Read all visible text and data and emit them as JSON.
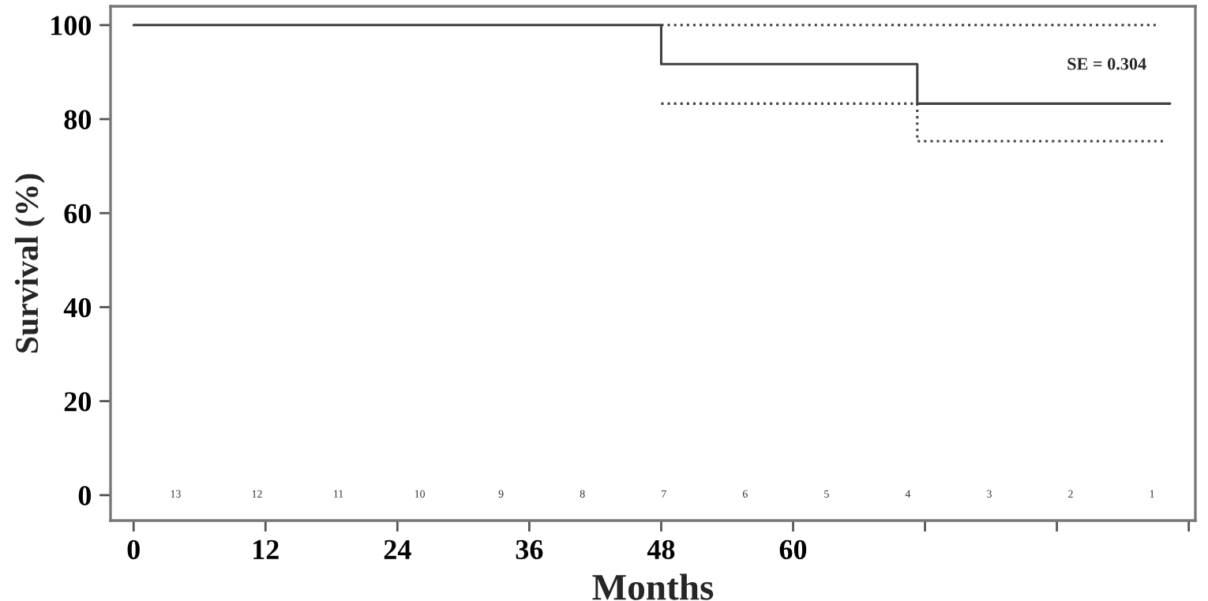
{
  "chart_data": {
    "type": "step",
    "xlabel": "Months",
    "ylabel": "Survival (%)",
    "xlim": [
      -2.1,
      96.6
    ],
    "ylim": [
      -5.4,
      104
    ],
    "xticks": [
      0,
      12,
      24,
      36,
      48,
      60,
      {
        "value": 72,
        "label": null
      },
      {
        "value": 84,
        "label": null
      },
      {
        "value": 96,
        "label": null
      }
    ],
    "yticks": [
      0,
      20,
      40,
      60,
      80,
      100
    ],
    "grid": false,
    "legend": false,
    "series": [
      {
        "color": "#404040",
        "line_style": "solid",
        "x": [
          0,
          48,
          71.3,
          94.3
        ],
        "values": [
          100,
          91.7,
          83.3,
          83.3
        ]
      },
      {
        "color": "#404040",
        "line_style": "dotted",
        "x": [
          48,
          93
        ],
        "values": [
          100,
          100
        ]
      },
      {
        "color": "#404040",
        "line_style": "dotted",
        "x": [
          48,
          71.3,
          94
        ],
        "values": [
          83.3,
          75.3,
          75.3
        ]
      }
    ],
    "annotations": [
      "SE = 0.304",
      "13",
      "12",
      "11",
      "10",
      "9",
      "8",
      "7",
      "6",
      "5",
      "4",
      "3",
      "2",
      "1"
    ]
  }
}
